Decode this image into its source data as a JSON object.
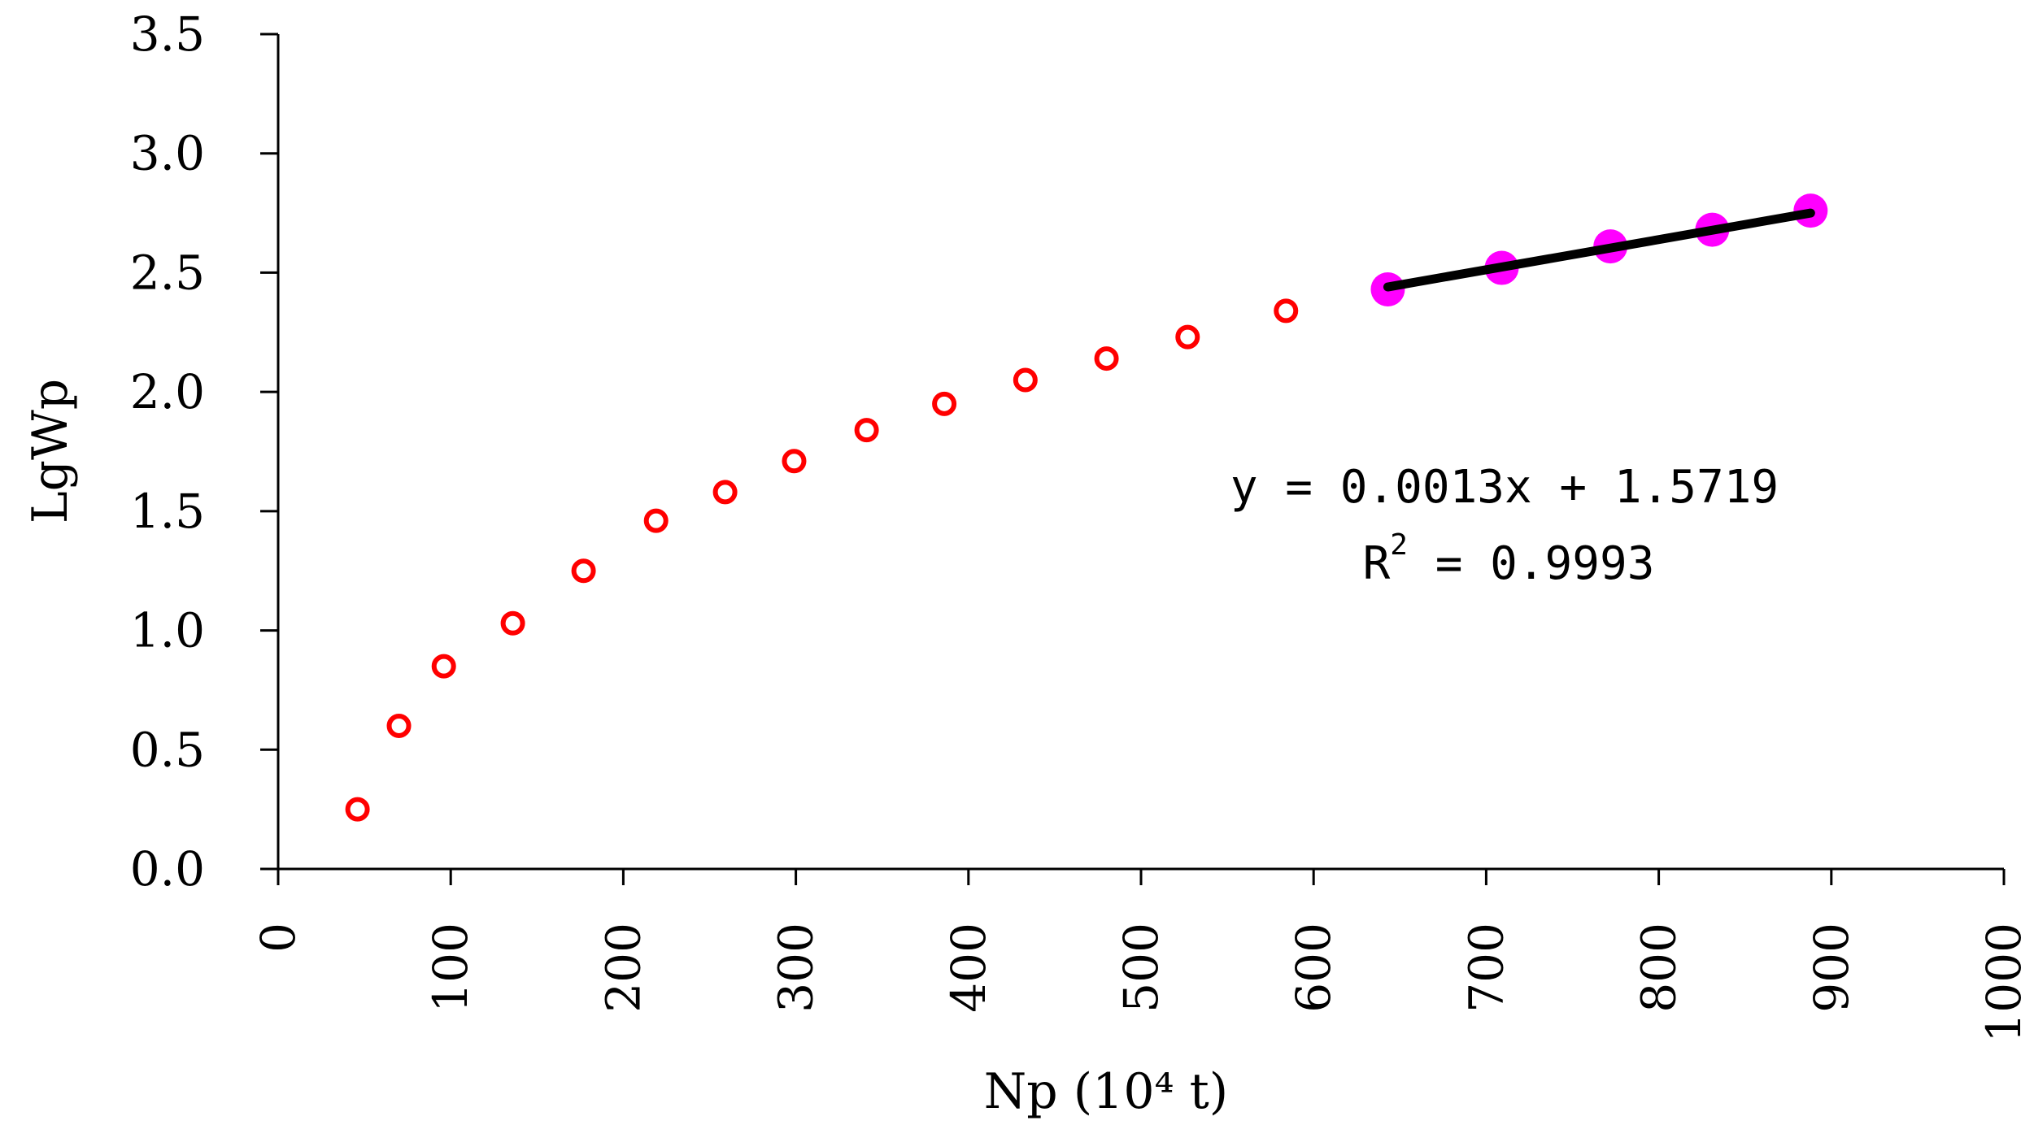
{
  "chart_data": {
    "type": "scatter",
    "xlabel": "Np (10⁴ t)",
    "ylabel": "LgWp",
    "xlim": [
      0,
      1000
    ],
    "ylim": [
      0,
      3.5
    ],
    "x_ticks": [
      "0",
      "100",
      "200",
      "300",
      "400",
      "500",
      "600",
      "700",
      "800",
      "900",
      "1000"
    ],
    "y_ticks": [
      "0.0",
      "0.5",
      "1.0",
      "1.5",
      "2.0",
      "2.5",
      "3.0",
      "3.5"
    ],
    "grid": false,
    "legend": "none",
    "series": [
      {
        "style": "hollow-circle",
        "color": "#ff0000",
        "points": [
          {
            "x": 46,
            "y": 0.25
          },
          {
            "x": 70,
            "y": 0.6
          },
          {
            "x": 96,
            "y": 0.85
          },
          {
            "x": 136,
            "y": 1.03
          },
          {
            "x": 177,
            "y": 1.25
          },
          {
            "x": 219,
            "y": 1.46
          },
          {
            "x": 259,
            "y": 1.58
          },
          {
            "x": 299,
            "y": 1.71
          },
          {
            "x": 341,
            "y": 1.84
          },
          {
            "x": 386,
            "y": 1.95
          },
          {
            "x": 433,
            "y": 2.05
          },
          {
            "x": 480,
            "y": 2.14
          },
          {
            "x": 527,
            "y": 2.23
          },
          {
            "x": 584,
            "y": 2.34
          }
        ]
      },
      {
        "style": "filled-circle",
        "color": "#ff00ff",
        "points": [
          {
            "x": 643,
            "y": 2.43
          },
          {
            "x": 709,
            "y": 2.52
          },
          {
            "x": 772,
            "y": 2.61
          },
          {
            "x": 831,
            "y": 2.68
          },
          {
            "x": 888,
            "y": 2.76
          }
        ]
      }
    ],
    "trendline": {
      "color": "#000000",
      "x_start": 643,
      "x_end": 888,
      "y_start": 2.44,
      "y_end": 2.75,
      "equation": "y = 0.0013x + 1.5719",
      "r2_prefix": "R",
      "r2_sup": "2",
      "r2_value": " = 0.9993"
    }
  }
}
